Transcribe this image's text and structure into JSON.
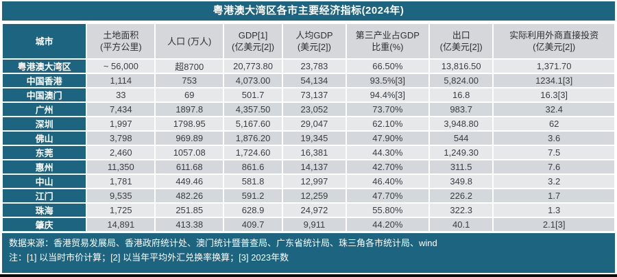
{
  "colors": {
    "accent": "#1d6480",
    "header-gray": "#d5d7da",
    "row-light": "#e7e8ea",
    "row-dark": "#d4d7db",
    "ink": "#3a3d40",
    "edge-black": "#0b0b0b"
  },
  "chart_data": {
    "type": "table",
    "title": "粤港澳大湾区各市主要经济指标(2024年)",
    "columns": [
      {
        "lines": [
          "城市"
        ]
      },
      {
        "lines": [
          "土地面积",
          "(平方公里)"
        ]
      },
      {
        "lines": [
          "人口 (万人)"
        ]
      },
      {
        "lines": [
          "GDP[1]",
          "(亿美元[2])"
        ]
      },
      {
        "lines": [
          "人均GDP",
          "(美元[2])"
        ]
      },
      {
        "lines": [
          "第三产业占GDP",
          "比重(%)"
        ]
      },
      {
        "lines": [
          "出口",
          "(亿美元[2])"
        ]
      },
      {
        "lines": [
          "实际利用外商直接投资",
          "(亿美元[2])"
        ]
      }
    ],
    "rows": [
      {
        "city": "粤港澳大湾区",
        "values": [
          "~ 56,000",
          "超8700",
          "20,773.80",
          "23,783",
          "66.50%",
          "13,816.50",
          "1,371.70"
        ]
      },
      {
        "city": "中国香港",
        "values": [
          "1,114",
          "753",
          "4,073.00",
          "54,134",
          "93.5%[3]",
          "5,824.00",
          "1234.1[3]"
        ]
      },
      {
        "city": "中国澳门",
        "values": [
          "33",
          "69",
          "501.7",
          "73,137",
          "94.4%[3]",
          "16.8",
          "16.3[3]"
        ]
      },
      {
        "city": "广州",
        "values": [
          "7,434",
          "1897.8",
          "4,357.50",
          "23,052",
          "73.70%",
          "983.7",
          "32.4"
        ]
      },
      {
        "city": "深圳",
        "values": [
          "1,997",
          "1798.95",
          "5,167.60",
          "29,047",
          "62.10%",
          "3,948.80",
          "62"
        ]
      },
      {
        "city": "佛山",
        "values": [
          "3,798",
          "969.89",
          "1,876.20",
          "19,345",
          "47.90%",
          "544",
          "3.6"
        ]
      },
      {
        "city": "东莞",
        "values": [
          "2,460",
          "1057.08",
          "1,724.60",
          "16,381",
          "44.30%",
          "1,249.30",
          "7.5"
        ]
      },
      {
        "city": "惠州",
        "values": [
          "11,350",
          "611.68",
          "861.6",
          "14,137",
          "42.70%",
          "311.5",
          "7.6"
        ]
      },
      {
        "city": "中山",
        "values": [
          "1,781",
          "449.46",
          "581.8",
          "12,997",
          "46.40%",
          "349.8",
          "3.2"
        ]
      },
      {
        "city": "江门",
        "values": [
          "9,535",
          "482.26",
          "591.2",
          "12,259",
          "47.70%",
          "226.2",
          "1.7"
        ]
      },
      {
        "city": "珠海",
        "values": [
          "1,725",
          "251.85",
          "628.9",
          "24,972",
          "55.80%",
          "322.3",
          "1.3"
        ]
      },
      {
        "city": "肇庆",
        "values": [
          "14,891",
          "413.38",
          "409.7",
          "9,911",
          "44.20%",
          "40.1",
          "2.1[3]"
        ]
      }
    ],
    "source": "数据来源：香港贸易发展局、香港政府统计处、澳门统计暨普查局、广东省统计局、珠三角各市统计局、wind",
    "notes": "注：[1] 以当时市价计算；[2] 以当年平均外汇兑换率换算；[3] 2023年数"
  }
}
